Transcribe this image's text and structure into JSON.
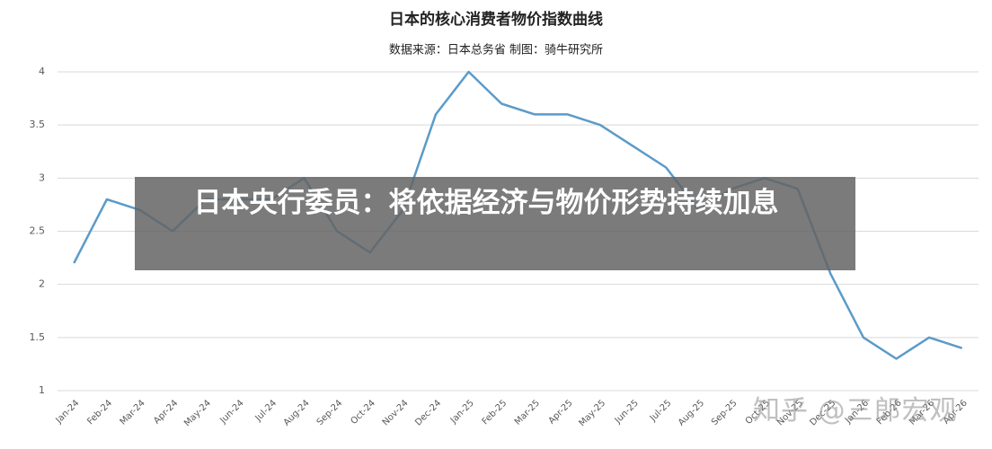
{
  "chart_data": {
    "type": "line",
    "title": "日本的核心消费者物价指数曲线",
    "subtitle": "数据来源：日本总务省  制图：骑牛研究所",
    "categories": [
      "Jan-24",
      "Feb-24",
      "Mar-24",
      "Apr-24",
      "May-24",
      "Jun-24",
      "Jul-24",
      "Aug-24",
      "Sep-24",
      "Oct-24",
      "Nov-24",
      "Dec-24",
      "Jan-25",
      "Feb-25",
      "Mar-25",
      "Apr-25",
      "May-25",
      "Jun-25",
      "Jul-25",
      "Aug-25",
      "Sep-25",
      "Oct-25",
      "Nov-25",
      "Dec-25",
      "Jan-26",
      "Feb-26",
      "Mar-26",
      "Apr-26"
    ],
    "values": [
      2.2,
      2.8,
      2.7,
      2.5,
      2.8,
      2.8,
      2.8,
      3.0,
      2.5,
      2.3,
      2.7,
      3.6,
      4.0,
      3.7,
      3.6,
      3.6,
      3.5,
      3.3,
      3.1,
      2.7,
      2.9,
      3.0,
      2.9,
      2.1,
      1.5,
      1.3,
      1.5,
      1.4
    ],
    "color": "#5b9bc9",
    "ylim": [
      1,
      4
    ],
    "yticks": [
      1,
      1.5,
      2,
      2.5,
      3,
      3.5,
      4
    ],
    "grid": true
  },
  "overlay": {
    "headline": "日本央行委员：将依据经济与物价形势持续加息"
  },
  "watermark": "知乎 @三郎宏观"
}
